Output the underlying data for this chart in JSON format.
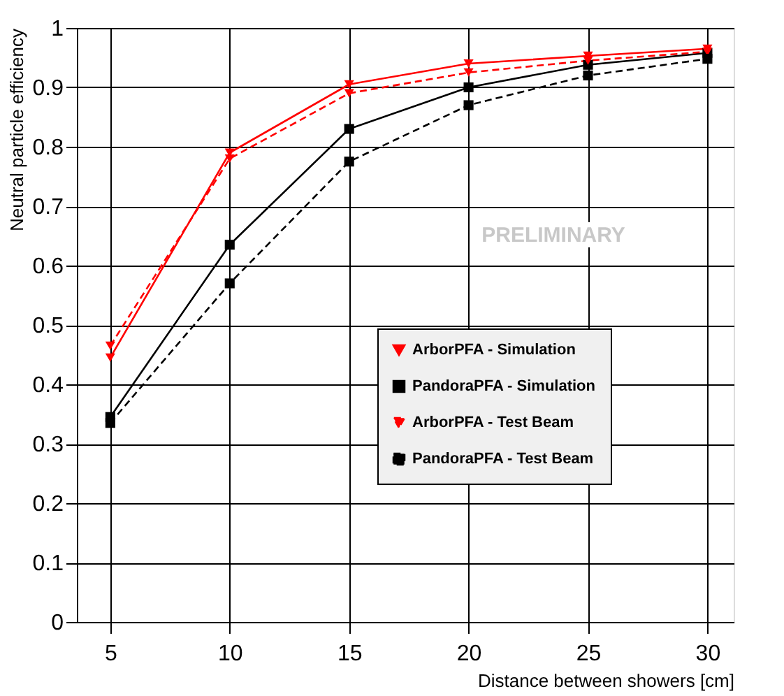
{
  "chart_data": {
    "type": "line",
    "xlabel": "Distance between showers [cm]",
    "ylabel": "Neutral particle efficiency",
    "x": [
      5,
      10,
      15,
      20,
      25,
      30
    ],
    "series": [
      {
        "name": "ArborPFA - Simulation",
        "color": "#ff0000",
        "line_style": "solid",
        "marker": "triangle",
        "values": [
          0.445,
          0.79,
          0.905,
          0.94,
          0.953,
          0.965
        ]
      },
      {
        "name": "PandoraPFA - Simulation",
        "color": "#000000",
        "line_style": "solid",
        "marker": "square",
        "values": [
          0.345,
          0.635,
          0.83,
          0.9,
          0.938,
          0.958
        ]
      },
      {
        "name": "ArborPFA - Test Beam",
        "color": "#ff0000",
        "line_style": "dashed",
        "marker": "triangle",
        "values": [
          0.465,
          0.78,
          0.89,
          0.925,
          0.945,
          0.96
        ]
      },
      {
        "name": "PandoraPFA - Test Beam",
        "color": "#000000",
        "line_style": "dashed",
        "marker": "square",
        "values": [
          0.335,
          0.57,
          0.775,
          0.87,
          0.92,
          0.948
        ]
      }
    ],
    "xlim": [
      3.6,
      31.1
    ],
    "xticks": [
      5,
      10,
      15,
      20,
      25,
      30
    ],
    "ylim": [
      0,
      1
    ],
    "yticks": [
      0,
      0.1,
      0.2,
      0.3,
      0.4,
      0.5,
      0.6,
      0.7,
      0.8,
      0.9,
      1
    ],
    "grid": true,
    "legend": "right",
    "annotations": [
      "PRELIMINARY"
    ]
  }
}
